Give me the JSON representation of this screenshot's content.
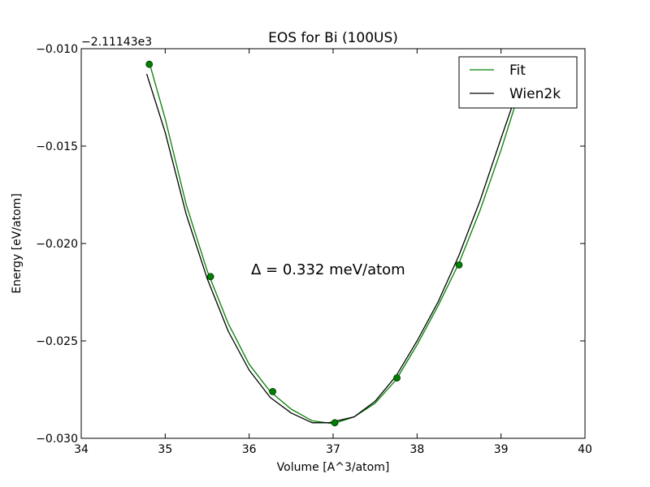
{
  "chart_data": {
    "type": "line",
    "title": "EOS for Bi (100US)",
    "xlabel": "Volume [A^3/atom]",
    "ylabel": "Energy [eV/atom]",
    "y_offset_label": "−2.11143e3",
    "xlim": [
      34,
      40
    ],
    "ylim": [
      -0.03,
      -0.01
    ],
    "x_ticks": [
      34,
      35,
      36,
      37,
      38,
      39,
      40
    ],
    "x_tick_labels": [
      "34",
      "35",
      "36",
      "37",
      "38",
      "39",
      "40"
    ],
    "y_ticks": [
      -0.01,
      -0.015,
      -0.02,
      -0.025,
      -0.03
    ],
    "y_tick_labels": [
      "−0.010",
      "−0.015",
      "−0.020",
      "−0.025",
      "−0.030"
    ],
    "grid": false,
    "legend_position": "top-right",
    "annotation": "Δ = 0.332 meV/atom",
    "series": [
      {
        "name": "Fit",
        "color": "#008000",
        "style": "line",
        "x": [
          34.81,
          35.0,
          35.25,
          35.5,
          35.75,
          36.0,
          36.25,
          36.5,
          36.75,
          37.0,
          37.25,
          37.5,
          37.75,
          38.0,
          38.25,
          38.5,
          38.75,
          39.0,
          39.19
        ],
        "y": [
          -0.0107,
          -0.0136,
          -0.018,
          -0.0214,
          -0.0241,
          -0.0262,
          -0.0276,
          -0.0285,
          -0.0291,
          -0.02925,
          -0.0289,
          -0.0282,
          -0.027,
          -0.0252,
          -0.0232,
          -0.021,
          -0.0183,
          -0.0152,
          -0.0126
        ]
      },
      {
        "name": "Wien2k",
        "color": "#000000",
        "style": "line",
        "x": [
          34.78,
          35.0,
          35.25,
          35.5,
          35.75,
          36.0,
          36.25,
          36.5,
          36.75,
          36.95,
          37.25,
          37.5,
          37.75,
          38.0,
          38.25,
          38.5,
          38.75,
          39.0,
          39.16
        ],
        "y": [
          -0.0113,
          -0.0143,
          -0.0185,
          -0.0218,
          -0.0245,
          -0.0265,
          -0.0279,
          -0.0287,
          -0.0292,
          -0.0292,
          -0.0289,
          -0.0281,
          -0.0268,
          -0.025,
          -0.023,
          -0.0206,
          -0.0178,
          -0.0146,
          -0.0126
        ]
      },
      {
        "name": "",
        "color": "#008000",
        "style": "points",
        "x": [
          34.81,
          35.54,
          36.28,
          37.02,
          37.76,
          38.5
        ],
        "y": [
          -0.0108,
          -0.0217,
          -0.0276,
          -0.0292,
          -0.0269,
          -0.0211
        ]
      }
    ]
  }
}
